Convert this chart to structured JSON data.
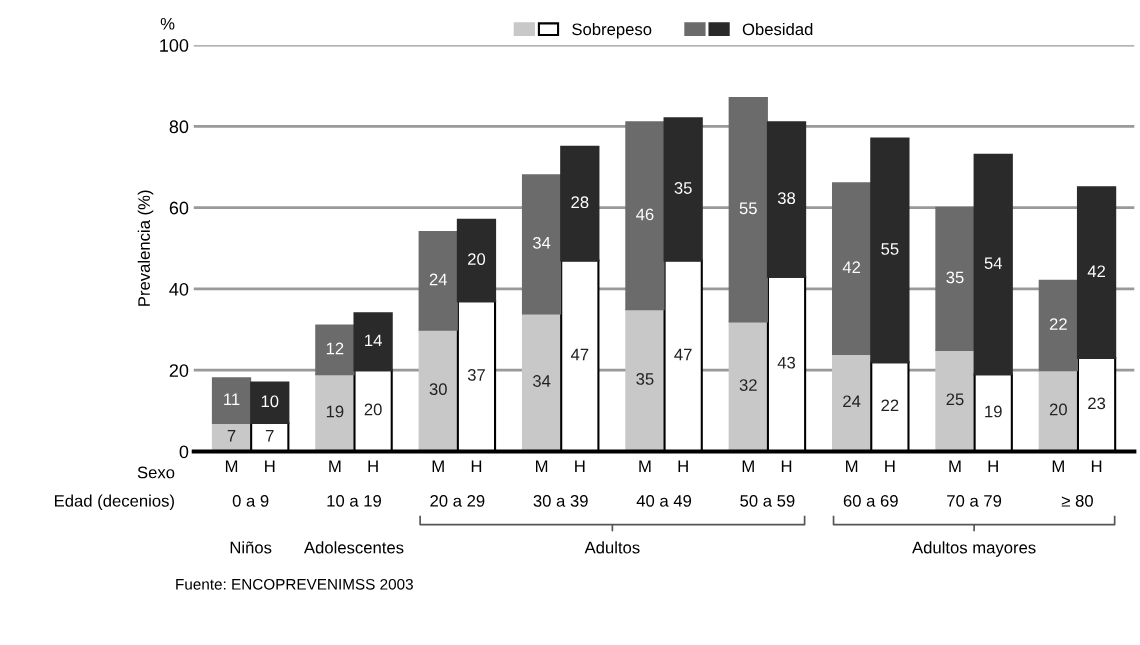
{
  "chart_data": {
    "type": "bar",
    "stacked": true,
    "ylabel": "Prevalencia (%)",
    "categories": [
      "M",
      "H",
      "M",
      "H",
      "M",
      "H",
      "M",
      "H",
      "M",
      "H",
      "M",
      "H",
      "M",
      "H",
      "M",
      "H",
      "M",
      "H"
    ],
    "series": [
      {
        "name": "Sobrepeso",
        "colors": [
          "#c8c8c8",
          "#ffffff",
          "#c8c8c8",
          "#ffffff",
          "#c8c8c8",
          "#ffffff",
          "#c8c8c8",
          "#ffffff",
          "#c8c8c8",
          "#ffffff",
          "#c8c8c8",
          "#ffffff",
          "#c8c8c8",
          "#ffffff",
          "#c8c8c8",
          "#ffffff",
          "#c8c8c8",
          "#ffffff"
        ],
        "values": [
          7,
          7,
          19,
          20,
          30,
          37,
          34,
          47,
          35,
          47,
          32,
          43,
          24,
          22,
          25,
          19,
          20,
          23
        ]
      },
      {
        "name": "Obesidad",
        "colors": [
          "#6b6b6b",
          "#2a2a2a",
          "#6b6b6b",
          "#2a2a2a",
          "#6b6b6b",
          "#2a2a2a",
          "#6b6b6b",
          "#2a2a2a",
          "#6b6b6b",
          "#2a2a2a",
          "#6b6b6b",
          "#2a2a2a",
          "#6b6b6b",
          "#2a2a2a",
          "#6b6b6b",
          "#2a2a2a",
          "#6b6b6b",
          "#2a2a2a"
        ],
        "values": [
          11,
          10,
          12,
          14,
          24,
          20,
          34,
          28,
          46,
          35,
          55,
          38,
          42,
          55,
          35,
          54,
          22,
          42
        ]
      }
    ],
    "ylim": [
      0,
      100
    ],
    "yticks": [
      0,
      20,
      40,
      60,
      80,
      100
    ],
    "grid": "y",
    "legend": "top",
    "data_labels": true,
    "annotations": [
      "%",
      "Sexo",
      "Edad (decenios)",
      "0 a 9",
      "10 a 19",
      "20 a 29",
      "30 a 39",
      "40 a 49",
      "50 a 59",
      "60 a 69",
      "70 a 79",
      "≥ 80",
      "Niños",
      "Adolescentes",
      "Adultos",
      "Adultos mayores",
      "Fuente: ENCOPREVENIMSS 2003"
    ]
  }
}
